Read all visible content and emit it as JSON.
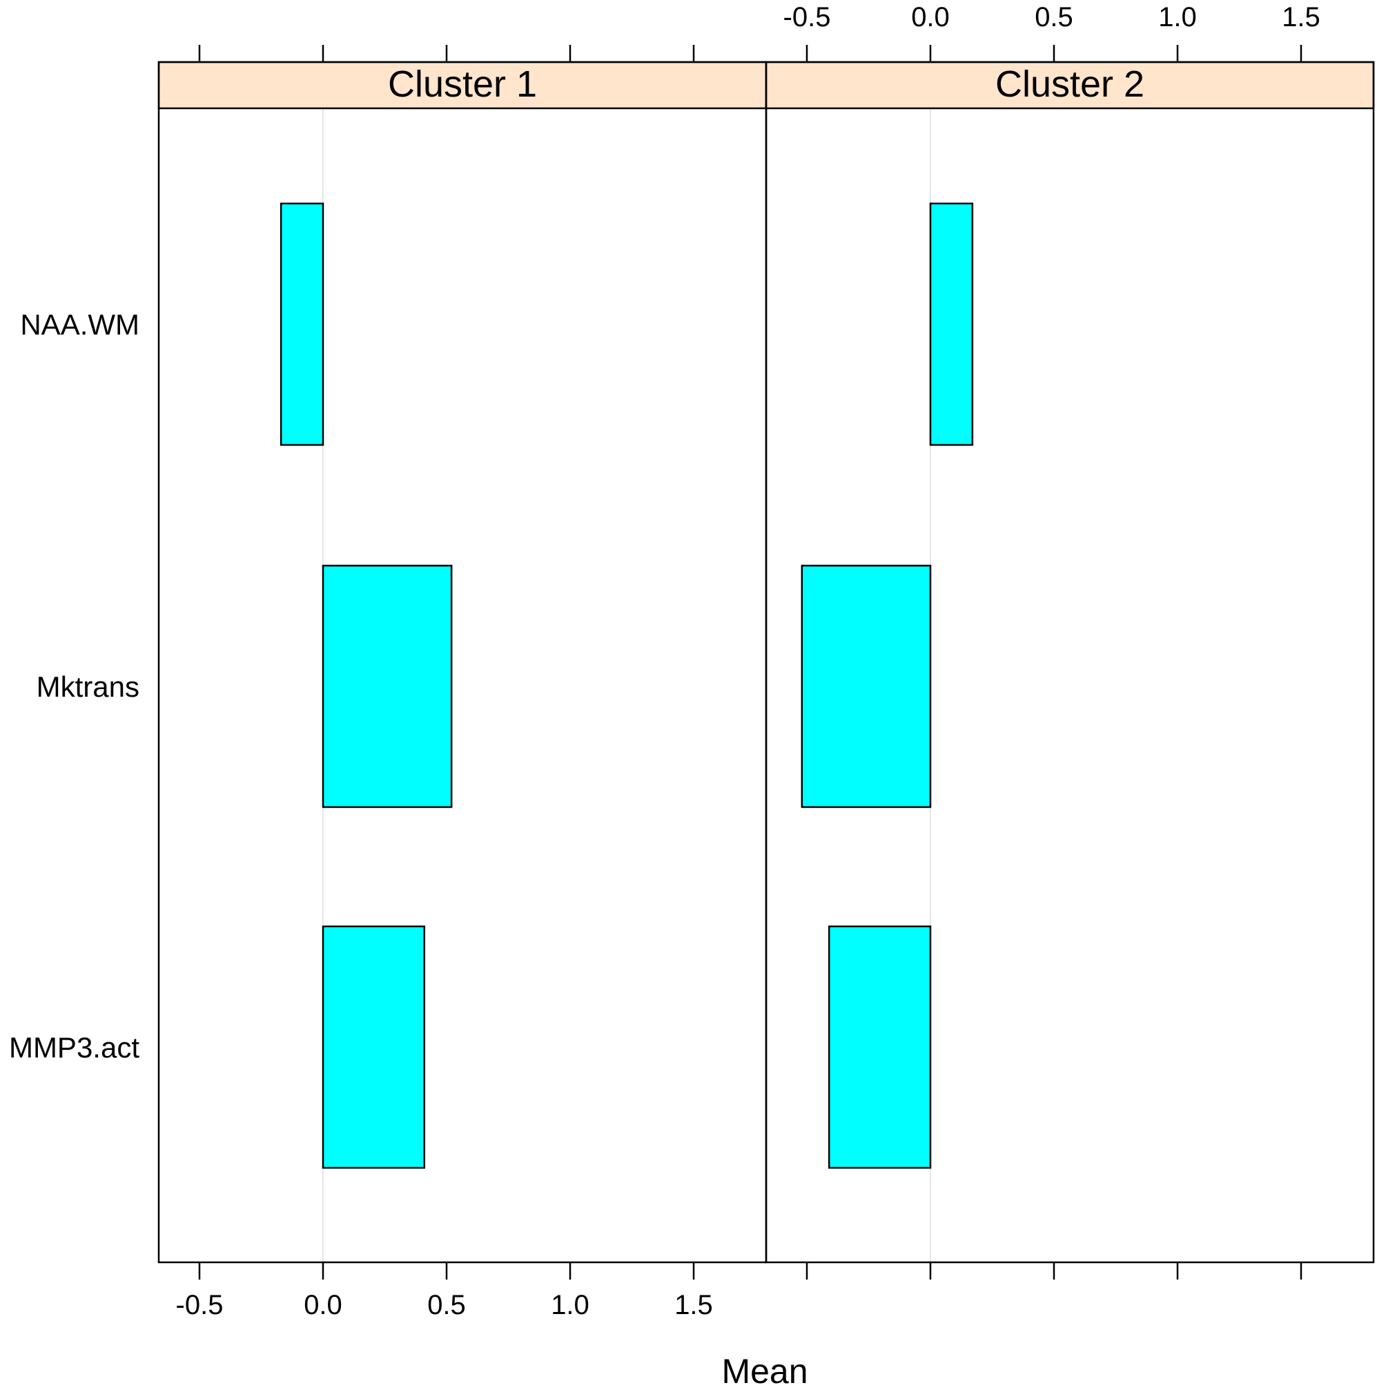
{
  "chart_data": {
    "type": "bar",
    "orientation": "horizontal",
    "xlabel": "Mean",
    "ylabel": "",
    "xlim": [
      -0.66,
      1.8
    ],
    "x_ticks": [
      -0.5,
      0.0,
      0.5,
      1.0,
      1.5
    ],
    "x_tick_labels": [
      "-0.5",
      "0.0",
      "0.5",
      "1.0",
      "1.5"
    ],
    "categories": [
      "NAA.WM",
      "Mktrans",
      "MMP3.act"
    ],
    "reference_line": 0,
    "bar_color": "#00FFFF",
    "strip_color": "#FFE5CC",
    "panels": [
      {
        "name": "Cluster 1",
        "values": [
          -0.17,
          0.52,
          0.41
        ]
      },
      {
        "name": "Cluster 2",
        "values": [
          0.17,
          -0.52,
          -0.41
        ]
      }
    ]
  }
}
